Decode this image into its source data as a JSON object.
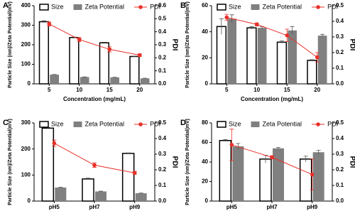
{
  "chart_data": [
    {
      "type": "bar",
      "panel_label": "A",
      "x_label": "Concentration (mg/mL)",
      "y_label": "Particle Size (nm)/Zeta Potential(mV)",
      "y2_label": "PDI",
      "categories": [
        "5",
        "10",
        "15",
        "20"
      ],
      "ylim": [
        0,
        400
      ],
      "yticks": [
        0,
        100,
        200,
        300,
        400
      ],
      "y2lim": [
        0,
        0.6
      ],
      "y2ticks": [
        {
          "value": 0,
          "label": "0.0"
        },
        0.1,
        0.2,
        0.3,
        0.4,
        0.5,
        0.6
      ],
      "series": [
        {
          "name": "Size",
          "color": "#ffffff",
          "edgecolor": "#000000",
          "values": [
            318,
            237,
            210,
            140
          ],
          "errors": [
            5,
            3,
            3,
            2
          ]
        },
        {
          "name": "Zeta Potential",
          "color": "#808080",
          "values": [
            47,
            35,
            33,
            28
          ],
          "errors": [
            1,
            1,
            1,
            1
          ]
        },
        {
          "name": "PDI",
          "color": "#e8302a",
          "axis": "y2",
          "values": [
            0.46,
            0.34,
            0.265,
            0.22
          ],
          "errors": [
            0.015,
            0.015,
            0.02,
            0.01
          ]
        }
      ]
    },
    {
      "type": "bar",
      "panel_label": "B",
      "x_label": "Concentration (mg/mL)",
      "y_label": "Particle Size (nm)/Zeta Potential(mV)",
      "y2_label": "PDI",
      "categories": [
        "5",
        "10",
        "15",
        "20"
      ],
      "ylim": [
        0,
        60
      ],
      "yticks": [
        0,
        20,
        40,
        60
      ],
      "y2lim": [
        0,
        0.5
      ],
      "y2ticks": [
        {
          "value": 0,
          "label": "0.0"
        },
        0.1,
        0.2,
        0.3,
        0.4,
        0.5
      ],
      "series": [
        {
          "name": "Size",
          "color": "#ffffff",
          "edgecolor": "#000000",
          "values": [
            44,
            43,
            32,
            18
          ],
          "errors": [
            6,
            1,
            1,
            0.5
          ]
        },
        {
          "name": "Zeta Potential",
          "color": "#808080",
          "values": [
            50,
            43,
            41,
            37
          ],
          "errors": [
            3,
            1,
            3,
            1
          ]
        },
        {
          "name": "PDI",
          "color": "#e8302a",
          "axis": "y2",
          "values": [
            0.425,
            0.38,
            0.31,
            0.17
          ],
          "errors": [
            0.02,
            0.01,
            0.04,
            0.03
          ]
        }
      ]
    },
    {
      "type": "bar",
      "panel_label": "C",
      "y_label": "Particle Size (nm)/Zeta Potential(mV)",
      "y2_label": "PDI",
      "categories": [
        "pH5",
        "pH7",
        "pH9"
      ],
      "ylim": [
        0,
        300
      ],
      "yticks": [
        0,
        100,
        200,
        300
      ],
      "y2lim": [
        0,
        0.5
      ],
      "y2ticks": [
        {
          "value": 0,
          "label": "0.0"
        },
        0.1,
        0.2,
        0.3,
        0.4,
        0.5
      ],
      "series": [
        {
          "name": "Size",
          "color": "#ffffff",
          "edgecolor": "#000000",
          "values": [
            280,
            85,
            183
          ],
          "errors": [
            3,
            3,
            2
          ]
        },
        {
          "name": "Zeta Potential",
          "color": "#808080",
          "values": [
            52,
            37,
            30
          ],
          "errors": [
            1,
            1,
            1
          ]
        },
        {
          "name": "PDI",
          "color": "#e8302a",
          "axis": "y2",
          "values": [
            0.37,
            0.23,
            0.18
          ],
          "errors": [
            0.02,
            0.015,
            0.01
          ]
        }
      ]
    },
    {
      "type": "bar",
      "panel_label": "D",
      "y_label": "Particle Size (nm)/Zeta Potential(mV)",
      "y2_label": "PDI",
      "categories": [
        "pH5",
        "pH7",
        "pH9"
      ],
      "ylim": [
        0,
        80
      ],
      "yticks": [
        0,
        20,
        40,
        60,
        80
      ],
      "y2lim": [
        0,
        0.5
      ],
      "y2ticks": [
        {
          "value": 0,
          "label": "0.0"
        },
        0.1,
        0.2,
        0.3,
        0.4,
        0.5
      ],
      "series": [
        {
          "name": "Size",
          "color": "#ffffff",
          "edgecolor": "#000000",
          "values": [
            62,
            43,
            43
          ],
          "errors": [
            1,
            4,
            3
          ]
        },
        {
          "name": "Zeta Potential",
          "color": "#808080",
          "values": [
            56,
            54,
            50
          ],
          "errors": [
            3,
            1,
            2
          ]
        },
        {
          "name": "PDI",
          "color": "#e8302a",
          "axis": "y2",
          "values": [
            0.36,
            0.28,
            0.17
          ],
          "errors": [
            0.1,
            0.01,
            0.1
          ]
        }
      ]
    }
  ]
}
